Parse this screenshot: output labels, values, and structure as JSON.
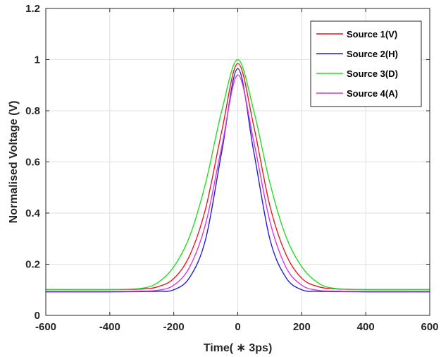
{
  "chart_data": {
    "type": "line",
    "xlabel": "Time( ∗ 3ps)",
    "ylabel": "Normalised Voltage (V)",
    "xlim": [
      -600,
      600
    ],
    "ylim": [
      0,
      1.2
    ],
    "xticks": [
      -600,
      -400,
      -200,
      0,
      200,
      400,
      600
    ],
    "yticks": [
      0,
      0.2,
      0.4,
      0.6,
      0.8,
      1,
      1.2
    ],
    "grid": true,
    "legend_position": "top-right",
    "series": [
      {
        "name": "Source 1(V)",
        "color": "#e8191e",
        "x": [
          -600,
          -400,
          -300,
          -250,
          -200,
          -150,
          -100,
          -50,
          0,
          50,
          100,
          150,
          200,
          250,
          300,
          400,
          600
        ],
        "y": [
          0.101,
          0.101,
          0.103,
          0.112,
          0.144,
          0.235,
          0.42,
          0.72,
          0.985,
          0.74,
          0.43,
          0.24,
          0.145,
          0.113,
          0.104,
          0.101,
          0.101
        ]
      },
      {
        "name": "Source 2(H)",
        "color": "#1f1fd8",
        "x": [
          -600,
          -400,
          -300,
          -250,
          -200,
          -150,
          -100,
          -50,
          0,
          50,
          100,
          150,
          200,
          250,
          300,
          400,
          600
        ],
        "y": [
          0.092,
          0.092,
          0.093,
          0.094,
          0.1,
          0.149,
          0.3,
          0.64,
          0.965,
          0.64,
          0.3,
          0.149,
          0.1,
          0.094,
          0.093,
          0.092,
          0.092
        ]
      },
      {
        "name": "Source 3(D)",
        "color": "#22dd22",
        "x": [
          -600,
          -400,
          -300,
          -250,
          -200,
          -150,
          -100,
          -50,
          0,
          50,
          100,
          150,
          200,
          250,
          300,
          400,
          600
        ],
        "y": [
          0.101,
          0.101,
          0.106,
          0.128,
          0.19,
          0.31,
          0.52,
          0.8,
          1.0,
          0.8,
          0.52,
          0.31,
          0.19,
          0.128,
          0.106,
          0.101,
          0.101
        ]
      },
      {
        "name": "Source 4(A)",
        "color": "#dd33dd",
        "x": [
          -600,
          -400,
          -300,
          -250,
          -200,
          -150,
          -100,
          -50,
          0,
          50,
          100,
          150,
          200,
          250,
          300,
          400,
          600
        ],
        "y": [
          0.094,
          0.094,
          0.095,
          0.098,
          0.118,
          0.19,
          0.36,
          0.66,
          0.94,
          0.68,
          0.37,
          0.19,
          0.118,
          0.098,
          0.095,
          0.094,
          0.094
        ]
      }
    ]
  }
}
